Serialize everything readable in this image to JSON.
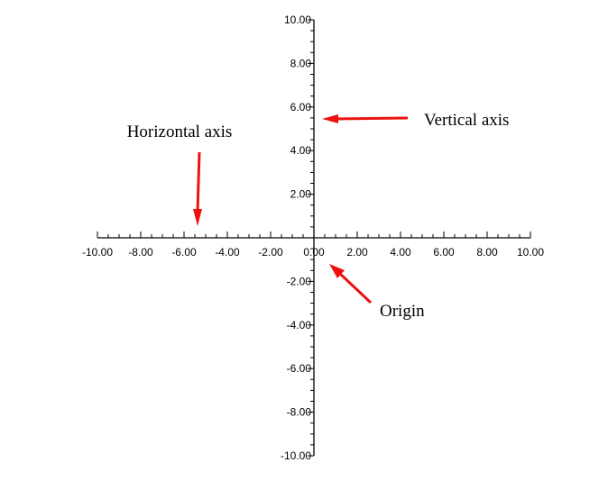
{
  "axes": {
    "x_range": [
      -10,
      10
    ],
    "y_range": [
      -10,
      10
    ],
    "major_step": 2,
    "minor_step": 0.5,
    "axis_color": "#000000",
    "x_tick_labels": [
      "-10.00",
      "-8.00",
      "-6.00",
      "-4.00",
      "-2.00",
      "0.00",
      "2.00",
      "4.00",
      "6.00",
      "8.00",
      "10.00"
    ],
    "y_tick_labels": [
      "10.00",
      "8.00",
      "6.00",
      "4.00",
      "2.00",
      "-2.00",
      "-4.00",
      "-6.00",
      "-8.00",
      "-10.00"
    ]
  },
  "annotations": {
    "horizontal_axis": "Horizontal axis",
    "vertical_axis": "Vertical axis",
    "origin": "Origin",
    "arrow_color": "#ee1111"
  }
}
